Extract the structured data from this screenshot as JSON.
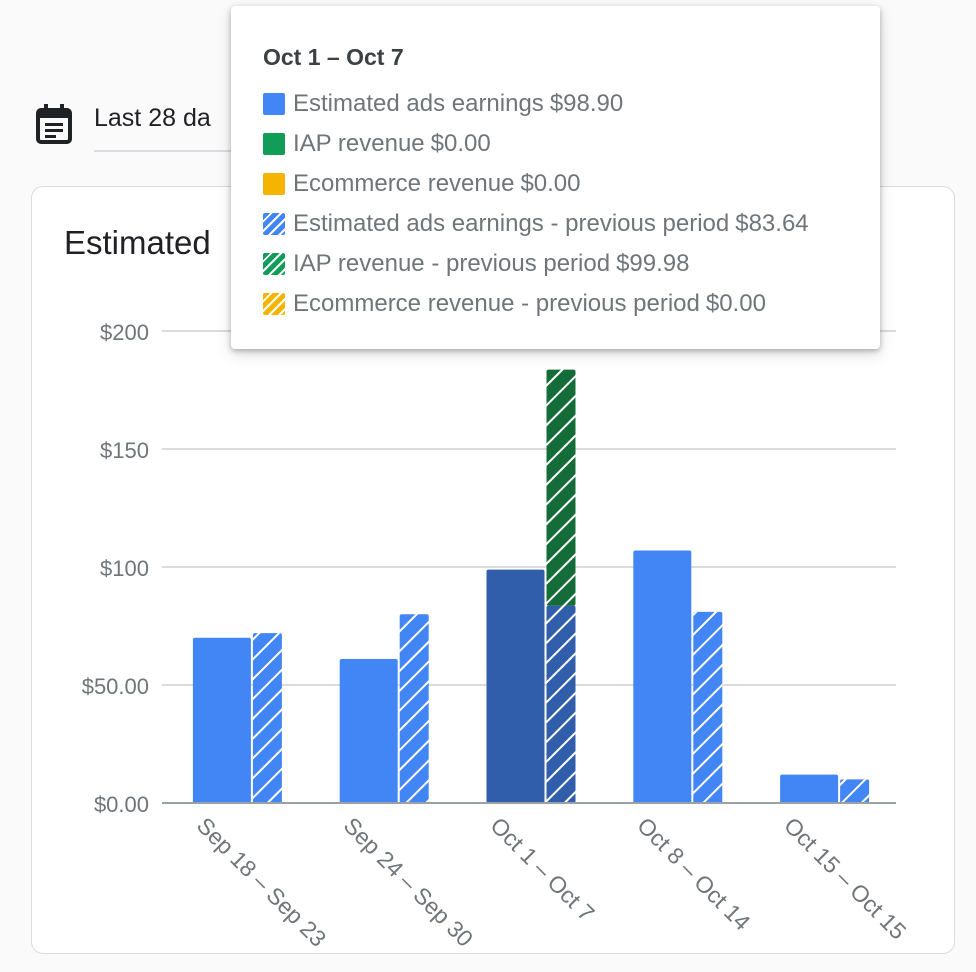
{
  "date_range": {
    "label": "Last 28 da"
  },
  "card": {
    "title": "Estimated"
  },
  "colors": {
    "ads": "#4285f4",
    "ads_highlight": "#315eab",
    "iap": "#0f9d58",
    "iap_dark": "#146c38",
    "ecommerce": "#f4b400",
    "grid": "#dadce0",
    "axis_text": "#70757a"
  },
  "chart_data": {
    "type": "bar",
    "categories": [
      "Sep 18 – Sep 23",
      "Sep 24 – Sep 30",
      "Oct 1 – Oct 7",
      "Oct 8 – Oct 14",
      "Oct 15 – Oct 15"
    ],
    "y_ticks": [
      "$0.00",
      "$50.00",
      "$100",
      "$150",
      "$200"
    ],
    "y_tick_values": [
      0,
      50,
      100,
      150,
      200
    ],
    "ylim": [
      0,
      200
    ],
    "highlighted_category": "Oct 1 – Oct 7",
    "series": [
      {
        "name": "Estimated ads earnings",
        "stack": "current",
        "pattern": "solid",
        "values": [
          70,
          61,
          98.9,
          107,
          12
        ]
      },
      {
        "name": "IAP revenue",
        "stack": "current",
        "pattern": "solid",
        "values": [
          0,
          0,
          0.0,
          0,
          0
        ]
      },
      {
        "name": "Ecommerce revenue",
        "stack": "current",
        "pattern": "solid",
        "values": [
          0,
          0,
          0.0,
          0,
          0
        ]
      },
      {
        "name": "Estimated ads earnings - previous period",
        "stack": "previous",
        "pattern": "hatched",
        "values": [
          72,
          80,
          83.64,
          81,
          10
        ]
      },
      {
        "name": "IAP revenue - previous period",
        "stack": "previous",
        "pattern": "hatched",
        "values": [
          0,
          0,
          99.98,
          0,
          0
        ]
      },
      {
        "name": "Ecommerce revenue - previous period",
        "stack": "previous",
        "pattern": "hatched",
        "values": [
          0,
          0,
          0.0,
          0,
          0
        ]
      }
    ],
    "tooltip": {
      "title": "Oct 1 – Oct 7",
      "rows": [
        {
          "label": "Estimated ads earnings",
          "value": "$98.90",
          "color": "#4285f4",
          "hatched": false
        },
        {
          "label": "IAP revenue",
          "value": "$0.00",
          "color": "#0f9d58",
          "hatched": false
        },
        {
          "label": "Ecommerce revenue",
          "value": "$0.00",
          "color": "#f4b400",
          "hatched": false
        },
        {
          "label": "Estimated ads earnings - previous period",
          "value": "$83.64",
          "color": "#4285f4",
          "hatched": true
        },
        {
          "label": "IAP revenue - previous period",
          "value": "$99.98",
          "color": "#0f9d58",
          "hatched": true
        },
        {
          "label": "Ecommerce revenue - previous period",
          "value": "$0.00",
          "color": "#f4b400",
          "hatched": true
        }
      ]
    }
  }
}
